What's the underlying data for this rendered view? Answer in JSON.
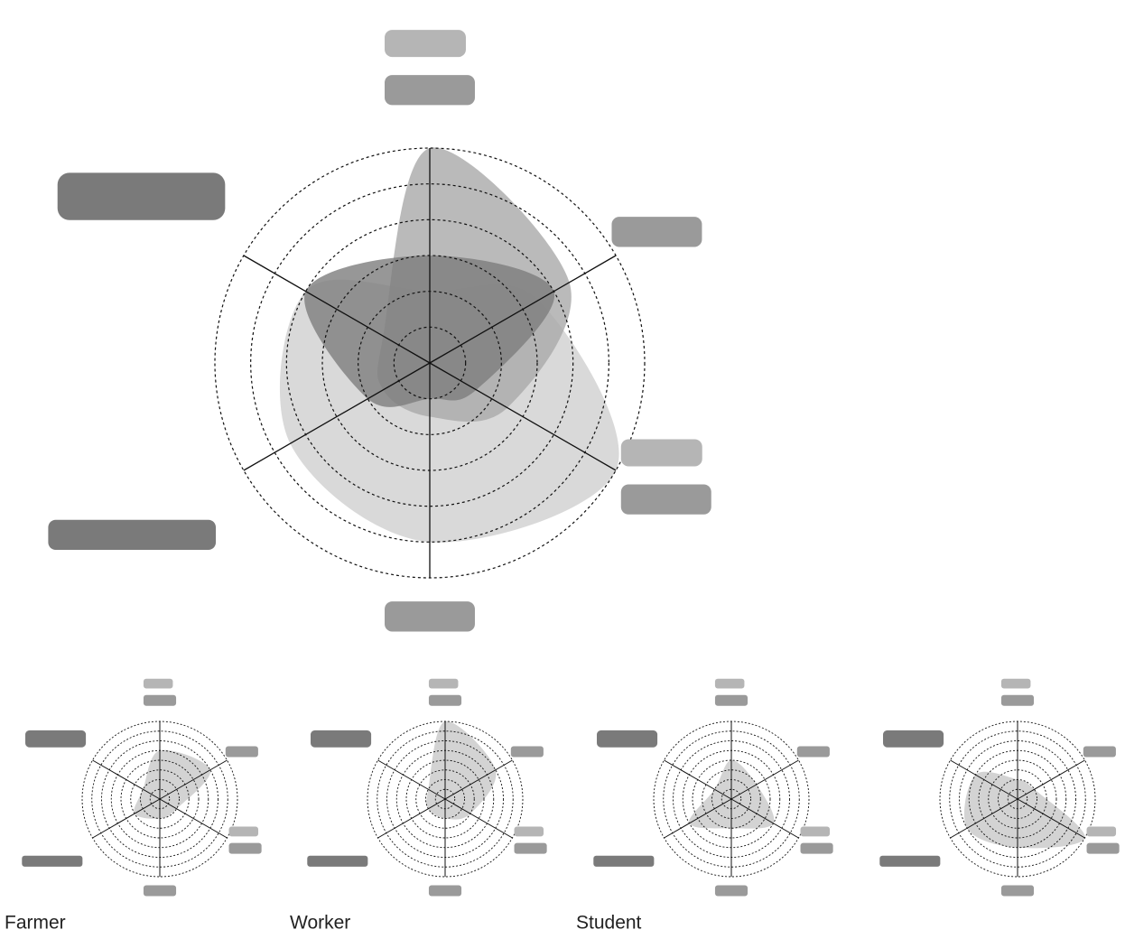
{
  "chart_data": [
    {
      "type": "radar",
      "categories": [
        null,
        null,
        null,
        null,
        null,
        null
      ],
      "rlim": [
        0,
        6
      ],
      "rticks": [
        1,
        2,
        3,
        4,
        5,
        6
      ],
      "series": [
        {
          "color": "#cfcfcf",
          "values": [
            2,
            3.5,
            6,
            5,
            4.5,
            4
          ]
        },
        {
          "color": "#a9a9a9",
          "values": [
            6,
            4.5,
            2.5,
            1.5,
            1.5,
            1.5
          ]
        },
        {
          "color": "#7d7d7d",
          "values": [
            3,
            4,
            1.5,
            1,
            2,
            4
          ]
        }
      ]
    },
    {
      "type": "radar",
      "title": "Farmer",
      "categories": [
        null,
        null,
        null,
        null,
        null,
        null
      ],
      "rlim": [
        0,
        8
      ],
      "rticks": [
        1,
        2,
        3,
        4,
        5,
        6,
        7,
        8
      ],
      "series": [
        {
          "color": "#c8c8c8",
          "values": [
            5,
            6,
            2,
            2,
            3,
            2
          ]
        }
      ]
    },
    {
      "type": "radar",
      "title": "Worker",
      "categories": [
        null,
        null,
        null,
        null,
        null,
        null
      ],
      "rlim": [
        0,
        8
      ],
      "rticks": [
        1,
        2,
        3,
        4,
        5,
        6,
        7,
        8
      ],
      "series": [
        {
          "color": "#c8c8c8",
          "values": [
            8,
            6,
            3,
            2,
            2,
            2
          ]
        }
      ]
    },
    {
      "type": "radar",
      "title": "Student",
      "categories": [
        null,
        null,
        null,
        null,
        null,
        null
      ],
      "rlim": [
        0,
        8
      ],
      "rticks": [
        1,
        2,
        3,
        4,
        5,
        6,
        7,
        8
      ],
      "series": [
        {
          "color": "#c8c8c8",
          "values": [
            4,
            3,
            5,
            3,
            5,
            2
          ]
        }
      ]
    },
    {
      "type": "radar",
      "categories": [
        null,
        null,
        null,
        null,
        null,
        null
      ],
      "rlim": [
        0,
        8
      ],
      "rticks": [
        1,
        2,
        3,
        4,
        5,
        6,
        7,
        8
      ],
      "series": [
        {
          "color": "#c8c8c8",
          "values": [
            2,
            2,
            8,
            5,
            6,
            5
          ]
        }
      ]
    }
  ]
}
